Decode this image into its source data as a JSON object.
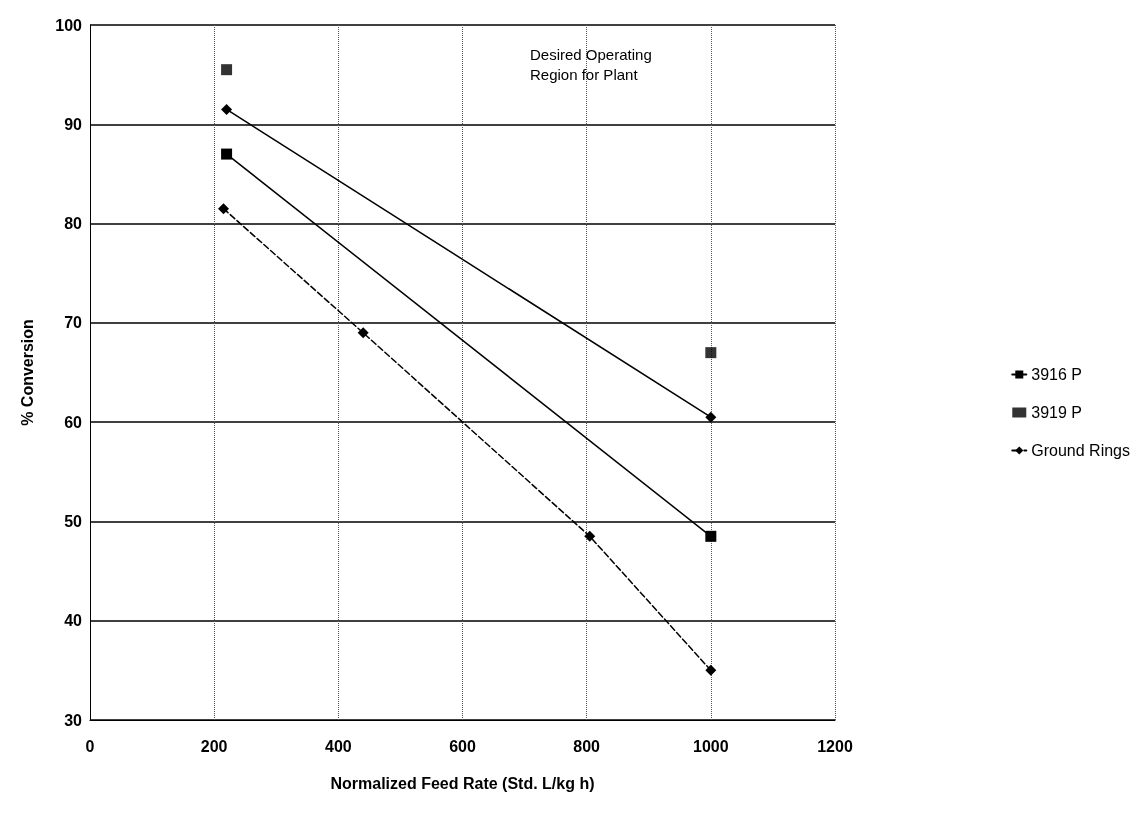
{
  "chart_data": {
    "type": "line",
    "xlabel": "Normalized Feed Rate (Std. L/kg h)",
    "ylabel": "% Conversion",
    "xlim": [
      0,
      1200
    ],
    "xticks": [
      0,
      200,
      400,
      600,
      800,
      1000,
      1200
    ],
    "ylim": [
      30,
      100
    ],
    "yticks": [
      30,
      40,
      50,
      60,
      70,
      80,
      90,
      100
    ],
    "grid": true,
    "legend": "right",
    "annotations": [
      "Desired Operating Region for Plant"
    ],
    "series": [
      {
        "name": "3916 P",
        "color": "#000000",
        "marker": "square",
        "line_style": "solid",
        "x": [
          220,
          1000
        ],
        "values": [
          87,
          48.5
        ]
      },
      {
        "name": "3919 P",
        "type": "scatter",
        "color": "#000000",
        "marker": "square",
        "x": [
          220,
          1000
        ],
        "values": [
          95.5,
          67
        ]
      },
      {
        "color": "#000000",
        "marker": "diamond",
        "line_style": "solid",
        "x": [
          220,
          1000
        ],
        "values": [
          91.5,
          60.5
        ]
      },
      {
        "name": "Ground Rings",
        "color": "#000000",
        "marker": "diamond",
        "line_style": "dashed",
        "x": [
          215,
          440,
          805,
          1000
        ],
        "values": [
          81.5,
          69,
          48.5,
          35
        ]
      }
    ]
  }
}
